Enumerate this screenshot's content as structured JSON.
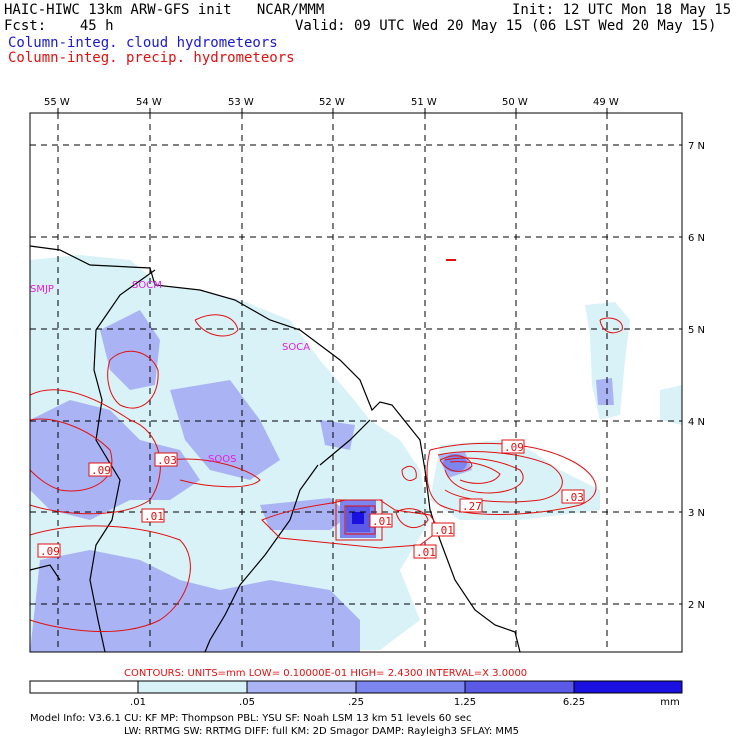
{
  "header": {
    "model_line": "HAIC-HIWC 13km ARW-GFS init   NCAR/MMM",
    "fcst_line": "Fcst:    45 h",
    "init_line": "Init: 12 UTC Mon 18 May 15",
    "valid_line": "Valid: 09 UTC Wed 20 May 15 (06 LST Wed 20 May 15)",
    "field_cloud": "Column-integ. cloud hydrometeors",
    "field_precip": "Column-integ. precip. hydrometeors"
  },
  "colors": {
    "cloud_text": "#1a1acc",
    "precip_text": "#e01010",
    "shade_1": "#d9f2f7",
    "shade_2": "#aab4f5",
    "shade_3": "#7d85ee",
    "shade_4": "#5a5ae6",
    "shade_5": "#1a10e0",
    "contour": "#e01010",
    "station": "#e020e0"
  },
  "lon_labels": [
    "55 W",
    "54 W",
    "53 W",
    "52 W",
    "51 W",
    "50 W",
    "49 W"
  ],
  "lat_labels": [
    "7 N",
    "6 N",
    "5 N",
    "4 N",
    "3 N",
    "2 N"
  ],
  "stations": [
    "SMJP",
    "SOCM",
    "SOCA",
    "SOOS"
  ],
  "contour_labels": [
    ".09",
    ".03",
    ".01",
    ".09",
    ".01",
    ".09",
    ".27",
    ".03",
    ".01",
    ".01"
  ],
  "contours_line": "CONTOURS:  UNITS=mm  LOW= 0.10000E-01  HIGH=  2.4300     INTERVAL=X  3.0000",
  "colorbar": {
    "ticks": [
      ".01",
      ".05",
      ".25",
      "1.25",
      "6.25"
    ],
    "unit": "mm"
  },
  "footer": {
    "line1": "Model Info: V3.6.1    CU: KF       MP: Thompson     PBL: YSU       SF: Noah LSM      13 km    51 levels  60 sec",
    "line2": "LW: RRTMG    SW: RRTMG   DIFF: full    KM: 2D Smagor DAMP: Rayleigh3   SFLAY: MM5"
  }
}
